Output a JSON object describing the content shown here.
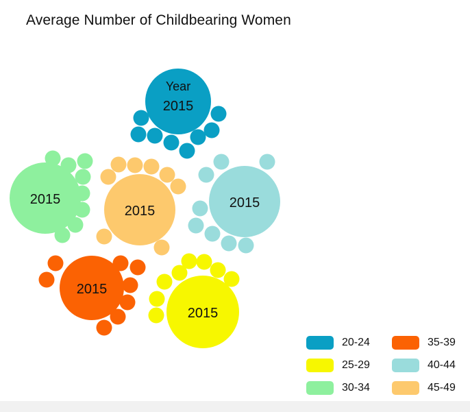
{
  "chart_data": {
    "type": "bubble",
    "title": "Average Number of Childbearing Women",
    "year_label": "Year",
    "groups": [
      {
        "name": "20-24",
        "color": "#0a9fc4",
        "label": "2015"
      },
      {
        "name": "25-29",
        "color": "#f7f700",
        "label": "2015"
      },
      {
        "name": "30-34",
        "color": "#8ef09e",
        "label": "2015"
      },
      {
        "name": "35-39",
        "color": "#fb6203",
        "label": "2015"
      },
      {
        "name": "40-44",
        "color": "#9adcdc",
        "label": "2015"
      },
      {
        "name": "45-49",
        "color": "#fdc96d",
        "label": "2015"
      }
    ],
    "legend": {
      "placement": "bottom-right"
    }
  }
}
